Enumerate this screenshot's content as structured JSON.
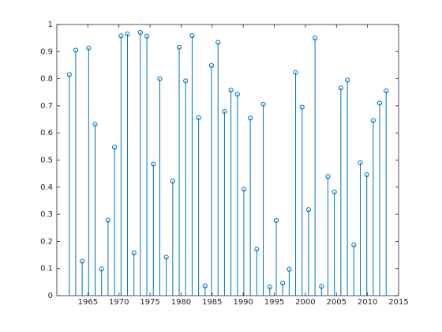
{
  "chart_data": {
    "type": "stem",
    "color": "#0072bd",
    "x": [
      1962.0,
      1963.04,
      1964.08,
      1965.12,
      1966.16,
      1967.2,
      1968.24,
      1969.29,
      1970.33,
      1971.37,
      1972.41,
      1973.45,
      1974.49,
      1975.53,
      1976.57,
      1977.61,
      1978.65,
      1979.69,
      1980.73,
      1981.78,
      1982.82,
      1983.86,
      1984.9,
      1985.94,
      1986.98,
      1988.02,
      1989.06,
      1990.1,
      1991.14,
      1992.18,
      1993.22,
      1994.27,
      1995.31,
      1996.35,
      1997.39,
      1998.43,
      1999.47,
      2000.51,
      2001.55,
      2002.59,
      2003.63,
      2004.67,
      2005.71,
      2006.76,
      2007.8,
      2008.84,
      2009.88,
      2010.92,
      2011.96,
      2013.0
    ],
    "values": [
      0.815,
      0.905,
      0.127,
      0.913,
      0.632,
      0.098,
      0.278,
      0.547,
      0.958,
      0.965,
      0.158,
      0.971,
      0.957,
      0.485,
      0.8,
      0.142,
      0.422,
      0.916,
      0.792,
      0.959,
      0.656,
      0.036,
      0.849,
      0.934,
      0.679,
      0.758,
      0.743,
      0.392,
      0.655,
      0.171,
      0.706,
      0.032,
      0.277,
      0.046,
      0.097,
      0.823,
      0.695,
      0.317,
      0.95,
      0.034,
      0.439,
      0.382,
      0.766,
      0.795,
      0.187,
      0.49,
      0.446,
      0.646,
      0.71,
      0.755
    ],
    "xlim": [
      1960,
      2015
    ],
    "xticks": [
      1965,
      1970,
      1975,
      1980,
      1985,
      1990,
      1995,
      2000,
      2005,
      2010,
      2015
    ],
    "ylim": [
      0,
      1
    ],
    "yticks": [
      0,
      0.1,
      0.2,
      0.3,
      0.4,
      0.5,
      0.6,
      0.7,
      0.8,
      0.9,
      1
    ]
  }
}
